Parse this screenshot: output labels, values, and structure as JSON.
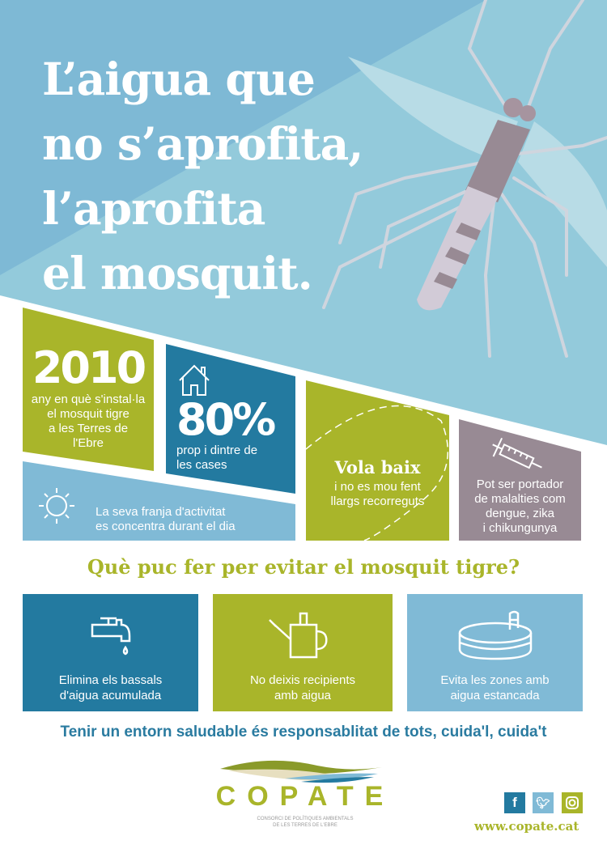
{
  "headline": {
    "line1": "L’aigua que",
    "line2": "no s’aprofita,",
    "line3": "l’aprofita",
    "line4": "el mosquit."
  },
  "facts": {
    "year": {
      "value": "2010",
      "text1": "any en què s'instal·la",
      "text2": "el mosquit tigre",
      "text3": "a les Terres de",
      "text4": "l'Ebre"
    },
    "homes": {
      "icon": "house-icon",
      "value": "80%",
      "text1": "prop i dintre de",
      "text2": "les cases"
    },
    "activity": {
      "icon": "sun-icon",
      "text1": "La seva franja d'activitat",
      "text2": "es concentra durant el dia"
    },
    "flight": {
      "title": "Vola baix",
      "text1": "i no es mou fent",
      "text2": "llargs recorreguts"
    },
    "disease": {
      "icon": "syringe-icon",
      "text1": "Pot ser portador",
      "text2": "de malalties com",
      "text3": "dengue, zika",
      "text4": "i chikungunya"
    }
  },
  "question": "Què puc fer per evitar el mosquit tigre?",
  "tips": [
    {
      "icon": "faucet-icon",
      "text1": "Elimina els bassals",
      "text2": "d'aigua acumulada"
    },
    {
      "icon": "watering-can-icon",
      "text1": "No deixis recipients",
      "text2": "amb aigua"
    },
    {
      "icon": "pool-icon",
      "text1": "Evita les zones amb",
      "text2": "aigua estancada"
    }
  ],
  "slogan": "Tenir un entorn saludable és responsablitat de tots, cuida'l, cuida't",
  "footer": {
    "logo": "COPATE",
    "logo_sub1": "CONSORCI DE POLÍTIQUES AMBIENTALS",
    "logo_sub2": "DE LES TERRES DE L'EBRE",
    "social": [
      "facebook-icon",
      "twitter-icon",
      "instagram-icon"
    ],
    "url": "www.copate.cat"
  },
  "colors": {
    "green": "#a9b52a",
    "blue": "#237aa0",
    "light_blue": "#80bad6",
    "mauve": "#988a94",
    "sky": "#93cadb"
  }
}
